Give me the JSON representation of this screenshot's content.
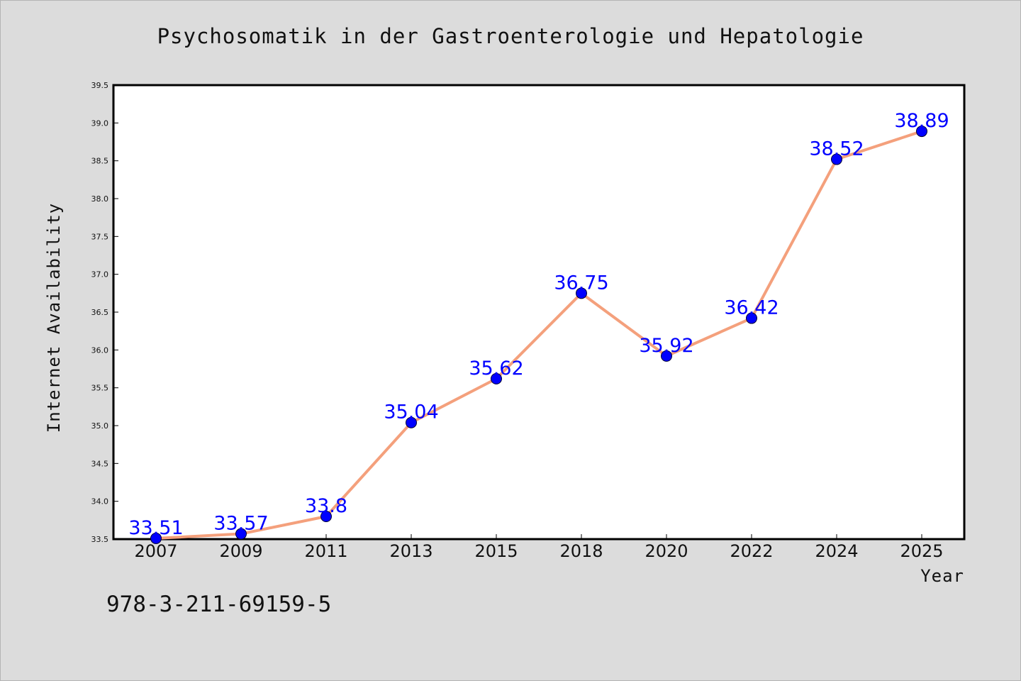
{
  "chart_data": {
    "type": "line",
    "title": "Psychosomatik in der Gastroenterologie und Hepatologie",
    "xlabel": "Year",
    "ylabel": "Internet Availability",
    "categories": [
      "2007",
      "2009",
      "2011",
      "2013",
      "2015",
      "2018",
      "2020",
      "2022",
      "2024",
      "2025"
    ],
    "series": [
      {
        "values": [
          33.51,
          33.57,
          33.8,
          35.04,
          35.62,
          36.75,
          35.92,
          36.42,
          38.52,
          38.89
        ],
        "labels": [
          "33.51",
          "33.57",
          "33.8",
          "35.04",
          "35.62",
          "36.75",
          "35.92",
          "36.42",
          "38.52",
          "38.89"
        ]
      }
    ],
    "ylim": [
      33.5,
      39.5
    ],
    "yticks": [
      "33.5",
      "34.0",
      "34.5",
      "35.0",
      "35.5",
      "36.0",
      "36.5",
      "37.0",
      "37.5",
      "38.0",
      "38.5",
      "39.0",
      "39.5"
    ],
    "grid": false,
    "legend": "none",
    "colors": {
      "line": "#f4a07c",
      "marker": "#0000ff",
      "data_label": "#0000ff",
      "plot_background": "#ffffff",
      "figure_background": "#dcdcdc"
    }
  },
  "footer_text": "978-3-211-69159-5"
}
